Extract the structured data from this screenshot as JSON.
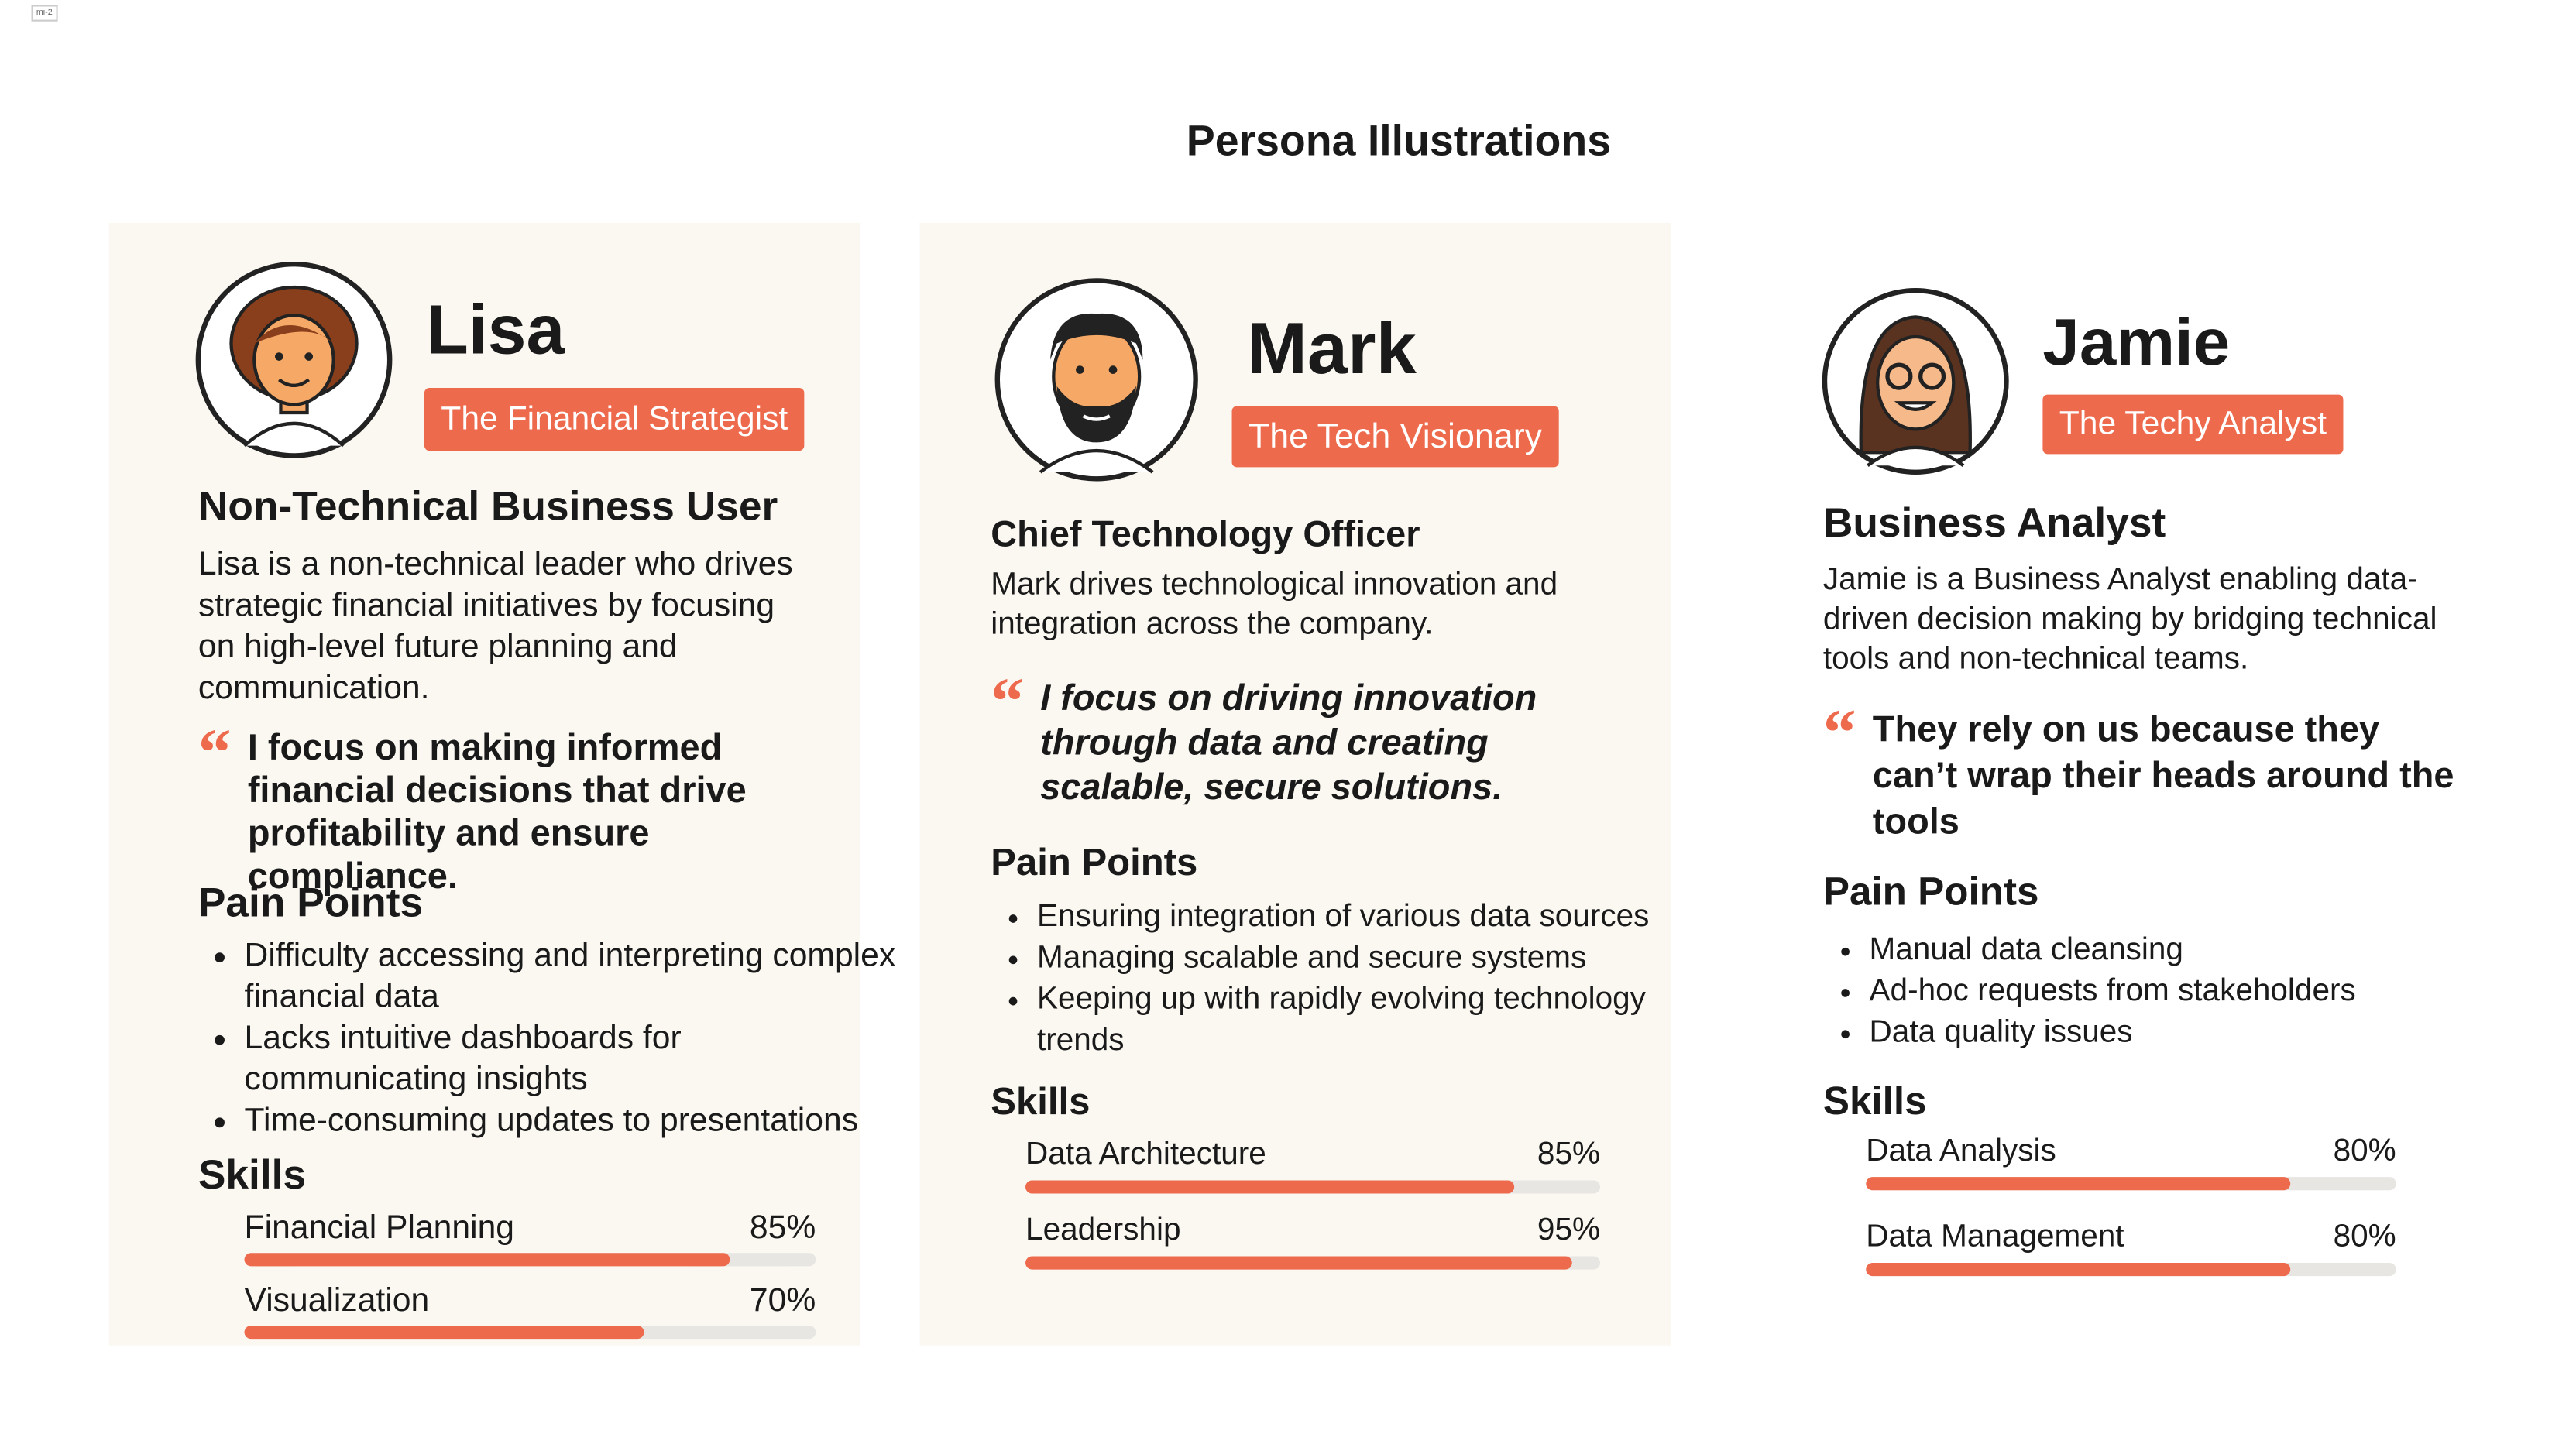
{
  "badge": "mi-2",
  "title": "Persona Illustrations",
  "personas": [
    {
      "name": "Lisa",
      "tagline": "The Financial Strategist",
      "role": "Non-Technical Business User",
      "description": "Lisa is a non-technical leader who drives strategic financial initiatives by focusing on high-level future planning and communication.",
      "quote": "I focus on making informed financial decisions that drive profitability and ensure compliance.",
      "pain_points_heading": "Pain Points",
      "pain_points": [
        "Difficulty accessing and interpreting complex financial data",
        "Lacks intuitive dashboards for communicating insights",
        "Time-consuming updates to presentations"
      ],
      "skills_heading": "Skills",
      "skills": [
        {
          "name": "Financial Planning",
          "value": 85,
          "value_label": "85%"
        },
        {
          "name": "Visualization",
          "value": 70,
          "value_label": "70%"
        }
      ]
    },
    {
      "name": "Mark",
      "tagline": "The Tech Visionary",
      "role": "Chief Technology Officer",
      "description": "Mark drives technological innovation and integration across the company.",
      "quote": "I focus on driving innovation through data and creating scalable, secure solutions.",
      "pain_points_heading": "Pain Points",
      "pain_points": [
        "Ensuring integration of various data sources",
        "Managing scalable and secure systems",
        "Keeping up with rapidly evolving technology trends"
      ],
      "skills_heading": "Skills",
      "skills": [
        {
          "name": "Data Architecture",
          "value": 85,
          "value_label": "85%"
        },
        {
          "name": "Leadership",
          "value": 95,
          "value_label": "95%"
        }
      ]
    },
    {
      "name": "Jamie",
      "tagline": "The Techy Analyst",
      "role": "Business Analyst",
      "description": "Jamie is a Business Analyst enabling data-driven decision making by bridging technical tools and non-technical teams.",
      "quote": "They rely on us because they can’t wrap their heads around the tools",
      "pain_points_heading": "Pain Points",
      "pain_points": [
        "Manual data cleansing",
        "Ad-hoc requests from stakeholders",
        "Data quality issues"
      ],
      "skills_heading": "Skills",
      "skills": [
        {
          "name": "Data Analysis",
          "value": 80,
          "value_label": "80%"
        },
        {
          "name": "Data Management",
          "value": 80,
          "value_label": "80%"
        }
      ]
    }
  ]
}
